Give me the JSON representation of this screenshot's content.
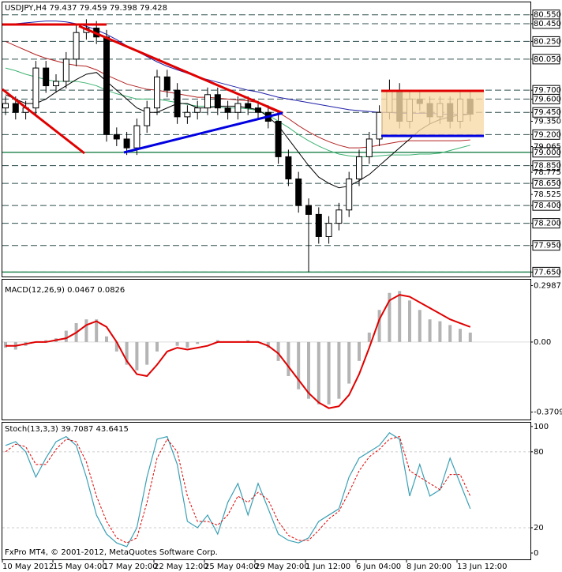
{
  "chart_data": [
    {
      "type": "candlestick",
      "title": "USDJPY,H4  79.437 79.459 79.398 79.428",
      "footer": "FxPro MT4, © 2001-2012, MetaQuotes Software Corp.",
      "categories": [
        "10 May 2012",
        null,
        null,
        null,
        null,
        "15 May 04:00",
        null,
        null,
        null,
        null,
        "17 May 20:00",
        null,
        null,
        null,
        null,
        "22 May 12:00",
        null,
        null,
        null,
        null,
        "25 May 04:00",
        null,
        null,
        null,
        null,
        "29 May 20:00",
        null,
        null,
        null,
        null,
        "1 Jun 12:00",
        null,
        null,
        null,
        null,
        "6 Jun 04:00",
        null,
        null,
        null,
        null,
        "8 Jun 20:00",
        null,
        null,
        null,
        null,
        "13 Jun 12:00",
        null
      ],
      "open": [
        79.5,
        79.55,
        79.45,
        79.5,
        79.95,
        79.75,
        79.8,
        80.05,
        80.35,
        80.4,
        80.3,
        79.2,
        79.15,
        79.05,
        79.3,
        79.5,
        79.85,
        79.7,
        79.4,
        79.45,
        79.5,
        79.65,
        79.5,
        79.45,
        79.55,
        79.5,
        79.45,
        79.35,
        78.95,
        78.7,
        78.4,
        78.3,
        78.05,
        78.2,
        78.35,
        78.7,
        78.95,
        79.15,
        79.45,
        79.7,
        79.35,
        79.6,
        79.55,
        79.4,
        79.55,
        79.35,
        79.6
      ],
      "high": [
        79.63,
        79.63,
        79.58,
        80.03,
        80.03,
        79.88,
        80.13,
        80.43,
        80.5,
        80.48,
        80.38,
        79.28,
        79.23,
        79.38,
        79.58,
        79.93,
        79.93,
        79.78,
        79.53,
        79.58,
        79.73,
        79.73,
        79.58,
        79.63,
        79.63,
        79.58,
        79.53,
        79.43,
        79.03,
        78.78,
        78.48,
        78.38,
        78.28,
        78.43,
        78.78,
        79.03,
        79.23,
        79.53,
        79.82,
        79.78,
        79.68,
        79.68,
        79.63,
        79.63,
        79.63,
        79.68,
        79.68
      ],
      "low": [
        79.42,
        79.37,
        79.37,
        79.42,
        79.67,
        79.67,
        79.72,
        79.97,
        80.27,
        80.22,
        79.12,
        79.07,
        78.97,
        78.97,
        79.22,
        79.42,
        79.62,
        79.32,
        79.32,
        79.37,
        79.42,
        79.42,
        79.37,
        79.37,
        79.42,
        79.37,
        79.27,
        78.87,
        78.62,
        78.32,
        77.65,
        77.97,
        77.97,
        78.12,
        78.27,
        78.62,
        78.87,
        79.07,
        79.37,
        79.27,
        79.27,
        79.47,
        79.32,
        79.32,
        79.27,
        79.27,
        79.35
      ],
      "close": [
        79.55,
        79.45,
        79.5,
        79.95,
        79.75,
        79.8,
        80.05,
        80.35,
        80.4,
        80.3,
        79.2,
        79.15,
        79.05,
        79.3,
        79.5,
        79.85,
        79.7,
        79.4,
        79.45,
        79.5,
        79.65,
        79.5,
        79.45,
        79.55,
        79.5,
        79.45,
        79.35,
        78.95,
        78.7,
        78.4,
        78.3,
        78.05,
        78.2,
        78.35,
        78.7,
        78.95,
        79.15,
        79.45,
        79.7,
        79.35,
        79.6,
        79.55,
        79.4,
        79.55,
        79.35,
        79.6,
        79.43
      ],
      "overlays": [
        {
          "color": "#1f1fa8",
          "values": [
            80.45,
            80.45,
            80.46,
            80.47,
            80.48,
            80.48,
            80.47,
            80.45,
            80.42,
            80.38,
            80.33,
            80.27,
            80.2,
            80.14,
            80.08,
            80.02,
            79.97,
            79.93,
            79.89,
            79.85,
            79.82,
            79.79,
            79.76,
            79.73,
            79.7,
            79.68,
            79.65,
            79.62,
            79.6,
            79.58,
            79.56,
            79.54,
            79.52,
            79.5,
            79.48,
            79.47,
            79.46,
            79.45,
            79.45,
            79.44,
            79.44,
            79.44,
            79.44,
            79.43,
            79.43,
            79.43,
            79.43
          ]
        },
        {
          "color": "#b22222",
          "values": [
            80.25,
            80.2,
            80.15,
            80.1,
            80.06,
            80.03,
            80.0,
            79.98,
            79.97,
            79.93,
            79.87,
            79.82,
            79.77,
            79.74,
            79.71,
            79.7,
            79.68,
            79.66,
            79.64,
            79.62,
            79.62,
            79.61,
            79.6,
            79.59,
            79.58,
            79.56,
            79.5,
            79.45,
            79.38,
            79.3,
            79.23,
            79.17,
            79.12,
            79.08,
            79.05,
            79.05,
            79.06,
            79.08,
            79.1,
            79.12,
            79.13,
            79.13,
            79.13,
            79.13,
            79.13,
            79.13,
            79.14
          ]
        },
        {
          "color": "#3cb371",
          "values": [
            79.95,
            79.92,
            79.88,
            79.85,
            79.82,
            79.8,
            79.8,
            79.8,
            79.78,
            79.75,
            79.7,
            79.66,
            79.63,
            79.6,
            79.6,
            79.6,
            79.58,
            79.56,
            79.54,
            79.52,
            79.52,
            79.51,
            79.5,
            79.5,
            79.49,
            79.47,
            79.42,
            79.35,
            79.28,
            79.2,
            79.13,
            79.07,
            79.02,
            78.98,
            78.96,
            78.95,
            78.95,
            78.96,
            78.97,
            78.97,
            78.97,
            78.98,
            78.98,
            78.99,
            79.02,
            79.05,
            79.08
          ]
        },
        {
          "color": "#000000",
          "values": [
            79.65,
            79.6,
            79.55,
            79.55,
            79.6,
            79.68,
            79.75,
            79.82,
            79.88,
            79.9,
            79.8,
            79.7,
            79.6,
            79.5,
            79.45,
            79.45,
            79.5,
            79.55,
            79.55,
            79.5,
            79.5,
            79.52,
            79.52,
            79.52,
            79.5,
            79.48,
            79.4,
            79.3,
            79.15,
            79.0,
            78.85,
            78.72,
            78.65,
            78.6,
            78.62,
            78.68,
            78.75,
            78.85,
            78.95,
            79.05,
            79.15,
            79.25,
            79.32,
            79.37,
            79.4,
            79.42,
            79.43
          ]
        }
      ],
      "ylim": [
        77.6,
        80.69
      ],
      "yticks": [
        {
          "value": 79.35,
          "label": "79.350"
        },
        {
          "value": 79.065,
          "label": "79.065"
        },
        {
          "value": 78.775,
          "label": "78.775"
        },
        {
          "value": 78.525,
          "label": "78.525"
        }
      ],
      "level_ticks": [
        {
          "value": 80.55,
          "label": "80.550"
        },
        {
          "value": 80.45,
          "label": "80.450"
        },
        {
          "value": 80.25,
          "label": "80.250"
        },
        {
          "value": 80.05,
          "label": "80.050"
        },
        {
          "value": 79.7,
          "label": "79.700"
        },
        {
          "value": 79.6,
          "label": "79.600"
        },
        {
          "value": 79.45,
          "label": "79.450"
        },
        {
          "value": 79.2,
          "label": "79.200"
        },
        {
          "value": 79.0,
          "label": "79.000"
        },
        {
          "value": 78.85,
          "label": "78.850"
        },
        {
          "value": 78.65,
          "label": "78.650"
        },
        {
          "value": 78.4,
          "label": "78.400"
        },
        {
          "value": 78.2,
          "label": "78.200"
        },
        {
          "value": 77.95,
          "label": "77.950"
        },
        {
          "value": 77.65,
          "label": "77.650"
        }
      ],
      "solid_levels": [
        79.0,
        77.65
      ],
      "level_color": "#2f4f4f",
      "solid_level_color": "#2e8b57"
    },
    {
      "type": "macd",
      "title": "MACD(12,26,9) 0.0467 0.0826",
      "histogram_color": "#b4b4b4",
      "signal_color": "#e00000",
      "histogram": [
        -0.03,
        -0.04,
        -0.02,
        0.0,
        0.01,
        0.02,
        0.06,
        0.1,
        0.12,
        0.12,
        0.03,
        -0.05,
        -0.12,
        -0.15,
        -0.12,
        -0.05,
        0.0,
        -0.02,
        -0.03,
        -0.01,
        0.0,
        0.01,
        0.0,
        0.0,
        0.01,
        0.0,
        -0.03,
        -0.1,
        -0.18,
        -0.25,
        -0.3,
        -0.33,
        -0.33,
        -0.3,
        -0.22,
        -0.1,
        0.05,
        0.17,
        0.26,
        0.27,
        0.22,
        0.17,
        0.12,
        0.11,
        0.09,
        0.07,
        0.05
      ],
      "signal": [
        -0.02,
        -0.02,
        -0.01,
        0.0,
        0.0,
        0.01,
        0.02,
        0.05,
        0.09,
        0.11,
        0.08,
        0.0,
        -0.1,
        -0.17,
        -0.18,
        -0.12,
        -0.05,
        -0.03,
        -0.04,
        -0.03,
        -0.02,
        0.0,
        0.0,
        0.0,
        0.0,
        0.0,
        -0.02,
        -0.06,
        -0.13,
        -0.2,
        -0.27,
        -0.32,
        -0.35,
        -0.34,
        -0.28,
        -0.17,
        -0.03,
        0.12,
        0.22,
        0.25,
        0.24,
        0.21,
        0.18,
        0.15,
        0.12,
        0.1,
        0.08
      ],
      "ylim": [
        -0.41,
        0.33
      ],
      "yticks": [
        0.2987,
        {
          "value": 0,
          "label": "0.00"
        },
        -0.3709
      ]
    },
    {
      "type": "stochastic",
      "title": "Stoch(13,3,3) 39.7087 43.6415",
      "main_color": "#3a9fb5",
      "signal_color": "#e00000",
      "main": [
        85,
        88,
        80,
        60,
        75,
        88,
        92,
        85,
        60,
        30,
        15,
        8,
        5,
        20,
        60,
        90,
        92,
        70,
        25,
        20,
        30,
        15,
        40,
        55,
        30,
        55,
        35,
        15,
        10,
        8,
        12,
        25,
        30,
        35,
        60,
        75,
        80,
        85,
        95,
        90,
        45,
        70,
        45,
        50,
        75,
        55,
        35
      ],
      "signal": [
        80,
        86,
        84,
        70,
        70,
        82,
        90,
        88,
        72,
        45,
        25,
        12,
        8,
        12,
        40,
        75,
        90,
        80,
        45,
        25,
        25,
        22,
        30,
        45,
        40,
        48,
        42,
        25,
        14,
        10,
        10,
        18,
        27,
        33,
        48,
        65,
        76,
        82,
        90,
        92,
        65,
        60,
        55,
        50,
        62,
        62,
        45
      ],
      "ylim": [
        -5,
        103
      ],
      "yticks": [
        100,
        80,
        20,
        0
      ]
    }
  ]
}
